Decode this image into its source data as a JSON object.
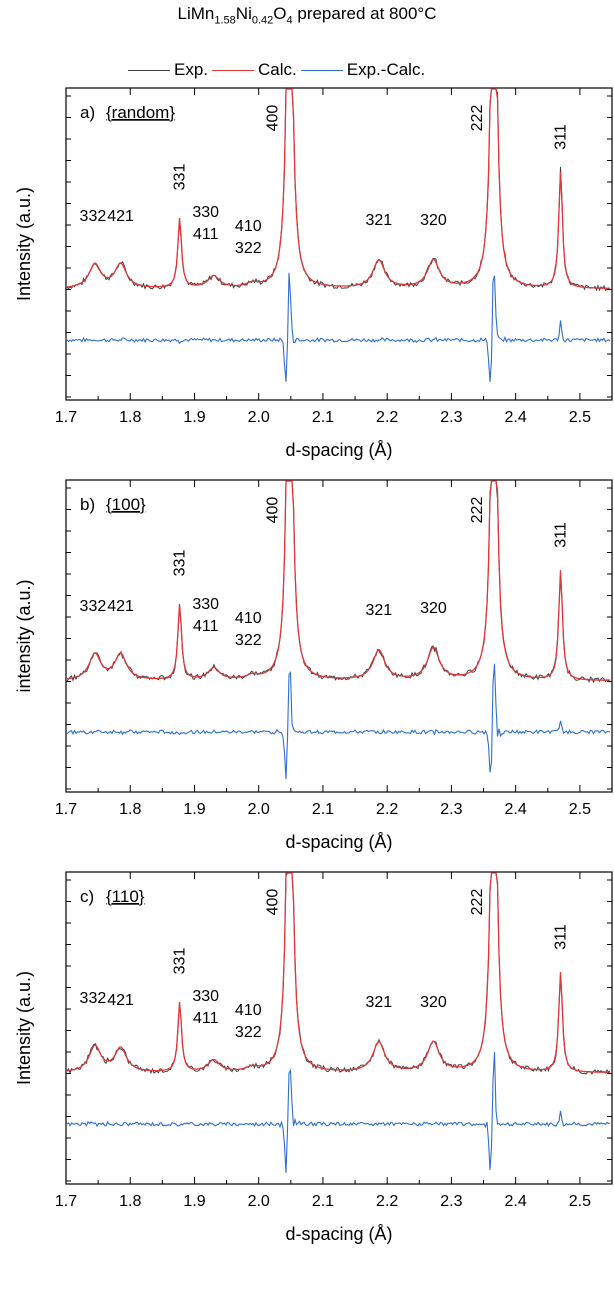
{
  "figure": {
    "title_prefix": "LiMn",
    "title_sub1": "1.58",
    "title_mid": "Ni",
    "title_sub2": "0.42",
    "title_tail": "O",
    "title_sub3": "4",
    "title_suffix": " prepared at 800°C"
  },
  "legend": [
    {
      "label": "Exp.",
      "color": "#404040"
    },
    {
      "label": "Calc.",
      "color": "#e0373a"
    },
    {
      "label": "Exp.-Calc.",
      "color": "#2f6fd0"
    }
  ],
  "chart_data": [
    {
      "type": "line",
      "panel_label": "a)",
      "panel_tag": "{random}",
      "xlabel": "d-spacing (Å)",
      "ylabel": "Intensity (a.u.)",
      "xlim": [
        1.7,
        2.55
      ],
      "xticks": [
        "1.7",
        "1.8",
        "1.9",
        "2.0",
        "2.1",
        "2.2",
        "2.3",
        "2.4",
        "2.5"
      ],
      "peaks": [
        {
          "label": "332",
          "d": 1.745,
          "h": 0.12
        },
        {
          "label": "421",
          "d": 1.785,
          "h": 0.12
        },
        {
          "label": "331",
          "d": 1.877,
          "h": 0.35
        },
        {
          "label": "330\n411",
          "d": 1.93,
          "h": 0.06
        },
        {
          "label": "410\n322",
          "d": 1.99,
          "h": 0.02
        },
        {
          "label": "400",
          "d": 2.048,
          "h": 2.5
        },
        {
          "label": "321",
          "d": 2.187,
          "h": 0.14
        },
        {
          "label": "320",
          "d": 2.272,
          "h": 0.14
        },
        {
          "label": "222",
          "d": 2.366,
          "h": 2.5
        },
        {
          "label": "311",
          "d": 2.47,
          "h": 0.58
        }
      ]
    },
    {
      "type": "line",
      "panel_label": "b)",
      "panel_tag": "{100}",
      "xlabel": "d-spacing (Å)",
      "ylabel": "intensity (a.u.)",
      "xlim": [
        1.7,
        2.55
      ],
      "xticks": [
        "1.7",
        "1.8",
        "1.9",
        "2.0",
        "2.1",
        "2.2",
        "2.3",
        "2.4",
        "2.5"
      ],
      "peaks": [
        {
          "label": "332",
          "d": 1.745,
          "h": 0.13
        },
        {
          "label": "421",
          "d": 1.785,
          "h": 0.13
        },
        {
          "label": "331",
          "d": 1.877,
          "h": 0.38
        },
        {
          "label": "330\n411",
          "d": 1.93,
          "h": 0.06
        },
        {
          "label": "410\n322",
          "d": 1.99,
          "h": 0.02
        },
        {
          "label": "400",
          "d": 2.048,
          "h": 2.5
        },
        {
          "label": "321",
          "d": 2.187,
          "h": 0.15
        },
        {
          "label": "320",
          "d": 2.272,
          "h": 0.16
        },
        {
          "label": "222",
          "d": 2.366,
          "h": 2.5
        },
        {
          "label": "311",
          "d": 2.47,
          "h": 0.55
        }
      ]
    },
    {
      "type": "line",
      "panel_label": "c)",
      "panel_tag": "{110}",
      "xlabel": "d-spacing (Å)",
      "ylabel": "Intensity (a.u.)",
      "xlim": [
        1.7,
        2.55
      ],
      "xticks": [
        "1.7",
        "1.8",
        "1.9",
        "2.0",
        "2.1",
        "2.2",
        "2.3",
        "2.4",
        "2.5"
      ],
      "peaks": [
        {
          "label": "332",
          "d": 1.745,
          "h": 0.13
        },
        {
          "label": "421",
          "d": 1.785,
          "h": 0.12
        },
        {
          "label": "331",
          "d": 1.877,
          "h": 0.35
        },
        {
          "label": "330\n411",
          "d": 1.93,
          "h": 0.06
        },
        {
          "label": "410\n322",
          "d": 1.99,
          "h": 0.02
        },
        {
          "label": "400",
          "d": 2.048,
          "h": 2.5
        },
        {
          "label": "321",
          "d": 2.187,
          "h": 0.15
        },
        {
          "label": "320",
          "d": 2.272,
          "h": 0.15
        },
        {
          "label": "222",
          "d": 2.366,
          "h": 2.5
        },
        {
          "label": "311",
          "d": 2.47,
          "h": 0.5
        }
      ]
    }
  ]
}
